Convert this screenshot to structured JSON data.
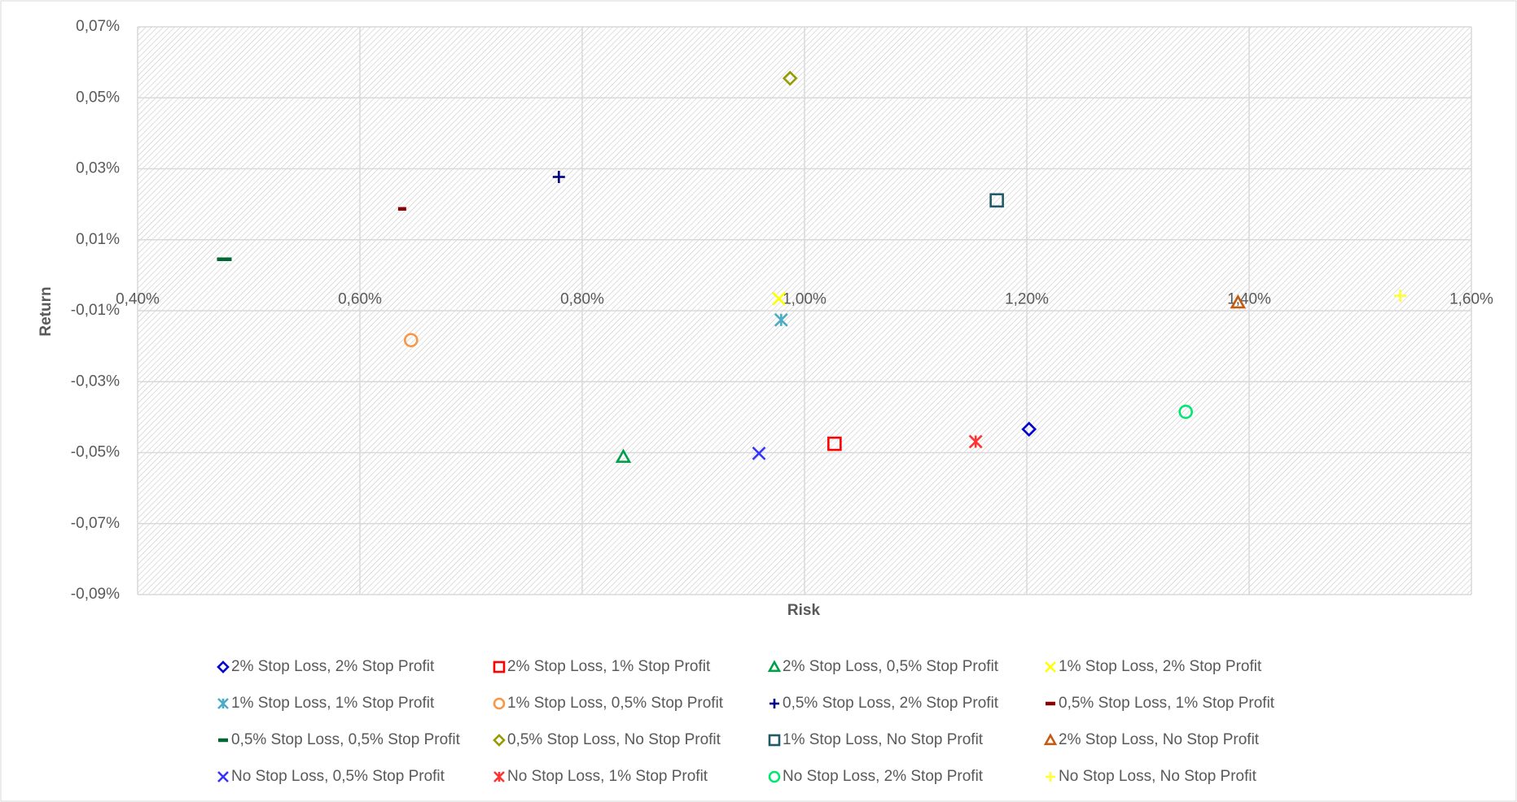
{
  "chart_data": {
    "type": "scatter",
    "xlabel": "Risk",
    "ylabel": "Return",
    "xlim": [
      0.4,
      1.6
    ],
    "xticks": [
      {
        "value": 0.4,
        "label": "0,40%"
      },
      {
        "value": 0.6,
        "label": "0,60%"
      },
      {
        "value": 0.8,
        "label": "0,80%"
      },
      {
        "value": 1.0,
        "label": "1,00%"
      },
      {
        "value": 1.2,
        "label": "1,20%"
      },
      {
        "value": 1.4,
        "label": "1,40%"
      },
      {
        "value": 1.6,
        "label": "1,60%"
      }
    ],
    "ylim": [
      -0.09,
      0.07
    ],
    "yticks": [
      {
        "value": 0.07,
        "label": "0,07%"
      },
      {
        "value": 0.05,
        "label": "0,05%"
      },
      {
        "value": 0.03,
        "label": "0,03%"
      },
      {
        "value": 0.01,
        "label": "0,01%"
      },
      {
        "value": -0.01,
        "label": "-0,01%"
      },
      {
        "value": -0.03,
        "label": "-0,03%"
      },
      {
        "value": -0.05,
        "label": "-0,05%"
      },
      {
        "value": -0.07,
        "label": "-0,07%"
      },
      {
        "value": -0.09,
        "label": "-0,09%"
      }
    ],
    "grid": true,
    "legend": "bottom",
    "series": [
      {
        "name": "2% Stop Loss, 2% Stop Profit",
        "color": "#0000cc",
        "marker": "diamond",
        "x": [
          1.202
        ],
        "values": [
          -0.0434
        ]
      },
      {
        "name": "2% Stop Loss, 1% Stop Profit",
        "color": "#ff0000",
        "marker": "square",
        "x": [
          1.027
        ],
        "values": [
          -0.0475
        ]
      },
      {
        "name": "2% Stop Loss, 0,5% Stop Profit",
        "color": "#00a04a",
        "marker": "triangle",
        "x": [
          0.837
        ],
        "values": [
          -0.0512
        ]
      },
      {
        "name": "1% Stop Loss, 2% Stop Profit",
        "color": "#ffff00",
        "marker": "x",
        "x": [
          0.977
        ],
        "values": [
          -0.0066
        ]
      },
      {
        "name": "1% Stop Loss, 1% Stop Profit",
        "color": "#4bacc6",
        "marker": "asterisk",
        "x": [
          0.979
        ],
        "values": [
          -0.0126
        ]
      },
      {
        "name": "1% Stop Loss, 0,5% Stop Profit",
        "color": "#f79646",
        "marker": "circle",
        "x": [
          0.646
        ],
        "values": [
          -0.0183
        ]
      },
      {
        "name": "0,5% Stop Loss, 2% Stop Profit",
        "color": "#000080",
        "marker": "plus",
        "x": [
          0.779
        ],
        "values": [
          0.0277
        ]
      },
      {
        "name": "0,5% Stop Loss, 1% Stop Profit",
        "color": "#8b0000",
        "marker": "dash",
        "x": [
          0.638
        ],
        "values": [
          0.0187
        ]
      },
      {
        "name": "0,5% Stop Loss, 0,5% Stop Profit",
        "color": "#006633",
        "marker": "dash",
        "x": [
          0.478
        ],
        "values": [
          0.0045
        ]
      },
      {
        "name": "0,5% Stop Loss, No Stop Profit",
        "color": "#999900",
        "marker": "diamond",
        "x": [
          0.987
        ],
        "values": [
          0.0555
        ]
      },
      {
        "name": "1% Stop Loss, No Stop Profit",
        "color": "#215968",
        "marker": "square",
        "x": [
          1.173
        ],
        "values": [
          0.0211
        ]
      },
      {
        "name": "2% Stop Loss, No Stop Profit",
        "color": "#c55a11",
        "marker": "triangle",
        "x": [
          1.39
        ],
        "values": [
          -0.0077
        ]
      },
      {
        "name": "No Stop Loss, 0,5% Stop Profit",
        "color": "#3333ff",
        "marker": "x",
        "x": [
          0.959
        ],
        "values": [
          -0.0502
        ]
      },
      {
        "name": "No Stop Loss, 1% Stop Profit",
        "color": "#ff3333",
        "marker": "asterisk",
        "x": [
          1.154
        ],
        "values": [
          -0.0469
        ]
      },
      {
        "name": "No Stop Loss, 2% Stop Profit",
        "color": "#00e673",
        "marker": "circle",
        "x": [
          1.343
        ],
        "values": [
          -0.0385
        ]
      },
      {
        "name": "No Stop Loss, No Stop Profit",
        "color": "#ffff33",
        "marker": "plus",
        "x": [
          1.536
        ],
        "values": [
          -0.0058
        ]
      }
    ]
  }
}
